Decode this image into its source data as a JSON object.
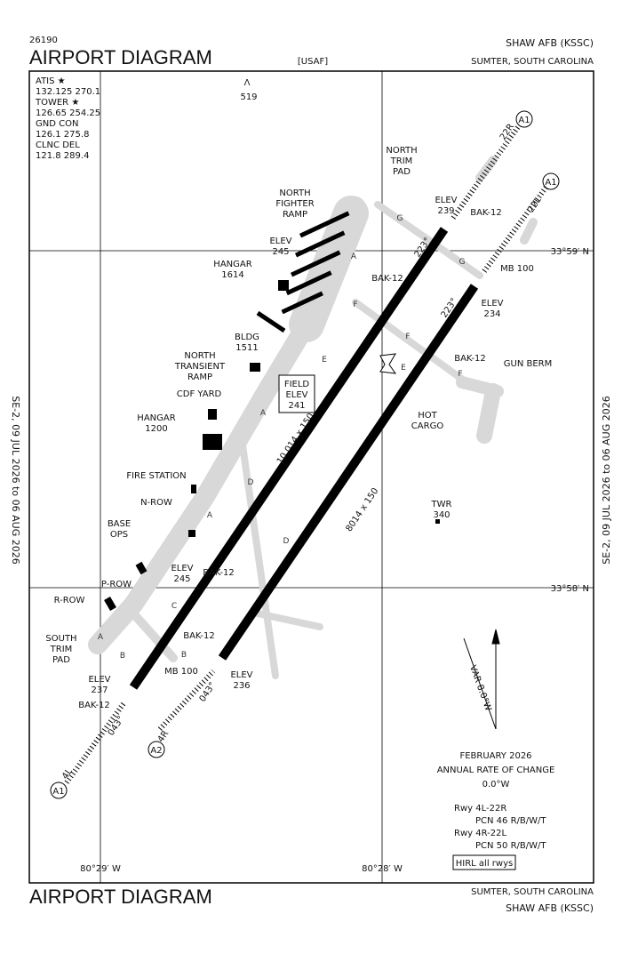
{
  "header": {
    "number": "26190",
    "title": "AIRPORT DIAGRAM",
    "agency": "[USAF]",
    "airport": "SHAW AFB  (KSSC)",
    "location": "SUMTER, SOUTH CAROLINA"
  },
  "frequencies": [
    "ATIS ★",
    "132.125  270.1",
    "TOWER ★",
    "126.65  254.25",
    "GND CON",
    "126.1  275.8",
    "CLNC DEL",
    "121.8  289.4"
  ],
  "obstacle": "519",
  "coordinates": [
    "33°59′ N",
    "33°58′ N",
    "80°29′ W",
    "80°28′ W"
  ],
  "effective": "SE-2,  09 JUL 2026  to  06 AUG 2026",
  "labels": [
    [
      "NORTH",
      "TRIM",
      "PAD"
    ],
    [
      "NORTH",
      "FIGHTER",
      "RAMP"
    ],
    [
      "ELEV",
      "245"
    ],
    [
      "HANGAR",
      "1614"
    ],
    [
      "BLDG",
      "1511"
    ],
    [
      "NORTH",
      "TRANSIENT",
      "RAMP"
    ],
    [
      "CDF YARD"
    ],
    [
      "HANGAR",
      "1200"
    ],
    [
      "FIRE STATION"
    ],
    [
      "N-ROW"
    ],
    [
      "BASE",
      "OPS"
    ],
    [
      "ELEV",
      "245"
    ],
    [
      "P-ROW"
    ],
    [
      "R-ROW"
    ],
    [
      "SOUTH",
      "TRIM",
      "PAD"
    ],
    [
      "ELEV",
      "237"
    ],
    [
      "ELEV",
      "236"
    ],
    [
      "ELEV",
      "239"
    ],
    [
      "ELEV",
      "234"
    ],
    [
      "GUN BERM"
    ],
    [
      "HOT",
      "CARGO"
    ],
    [
      "TWR",
      "340"
    ],
    [
      "MB 100"
    ],
    [
      "MB 100"
    ],
    [
      "BAK-12"
    ],
    [
      "BAK-12"
    ],
    [
      "BAK-12"
    ],
    [
      "BAK-12"
    ],
    [
      "BAK-12"
    ],
    [
      "BAK-12"
    ]
  ],
  "field_elevation": [
    "FIELD",
    "ELEV",
    "241"
  ],
  "taxiways": [
    "G",
    "G",
    "F",
    "F",
    "F",
    "E",
    "E",
    "A",
    "A",
    "A",
    "A",
    "D",
    "D",
    "C",
    "B",
    "B"
  ],
  "runway_texts": [
    "10,014 x 150",
    "8014 x 150",
    "223°",
    "223°",
    "043°",
    "043°",
    "22R",
    "22L",
    "4L",
    "4R"
  ],
  "approach_lights": [
    "A1",
    "A1",
    "A2",
    "A1"
  ],
  "variation": "VAR 8.0°W",
  "change": [
    "FEBRUARY 2026",
    "ANNUAL RATE OF CHANGE",
    "0.0°W"
  ],
  "notes": [
    "Rwy 4L-22R",
    "PCN 46 R/B/W/T",
    "Rwy 4R-22L",
    "PCN 50 R/B/W/T"
  ],
  "lighting": "HIRL all rwys",
  "footer": {
    "title": "AIRPORT DIAGRAM",
    "location": "SUMTER, SOUTH CAROLINA",
    "airport": "SHAW AFB  (KSSC)"
  }
}
